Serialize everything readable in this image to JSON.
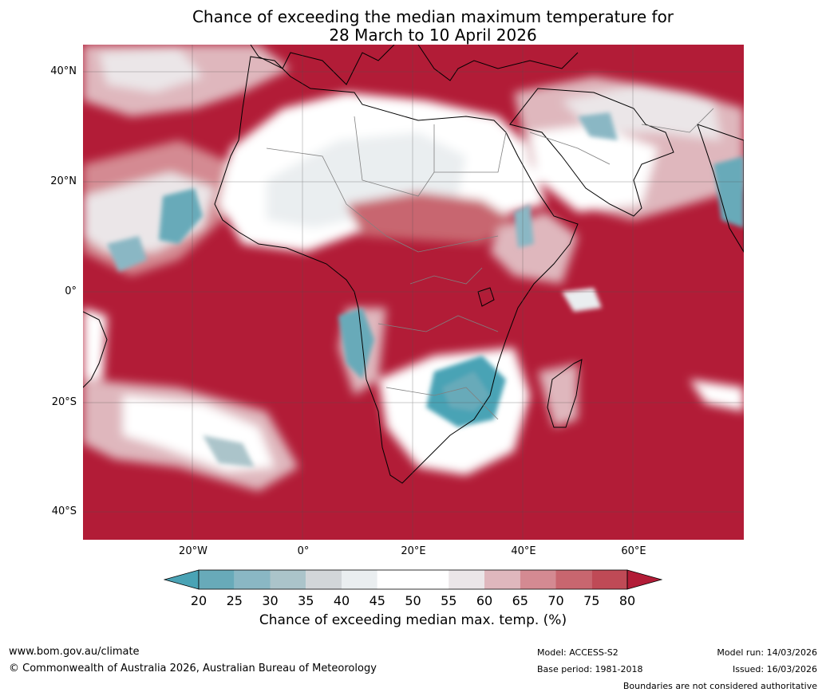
{
  "title": {
    "line1": "Chance of exceeding the median maximum temperature for",
    "line2": "28 March to 10 April 2026"
  },
  "map": {
    "latitude_labels": [
      "40°N",
      "20°N",
      "0°",
      "20°S",
      "40°S"
    ],
    "longitude_labels": [
      "20°W",
      "0°",
      "20°E",
      "40°E",
      "60°E"
    ],
    "colors": {
      "land_outline": "#000000",
      "borders": "#808080",
      "gridlines": "#505050"
    }
  },
  "colorbar": {
    "ticks": [
      "20",
      "25",
      "30",
      "35",
      "40",
      "45",
      "50",
      "55",
      "60",
      "65",
      "70",
      "75",
      "80"
    ],
    "colors": [
      "#4aa3b5",
      "#68aab9",
      "#8ab7c4",
      "#abc4ca",
      "#d2d6d9",
      "#eaeef0",
      "#ffffff",
      "#ffffff",
      "#ebe6e8",
      "#dfb7bd",
      "#d48a92",
      "#c8666f",
      "#bf4a56",
      "#b21c37"
    ],
    "label": "Chance of exceeding median max. temp. (%)"
  },
  "footer": {
    "website": "www.bom.gov.au/climate",
    "copyright": "© Commonwealth of Australia 2026, Australian Bureau of Meteorology",
    "model": "Model: ACCESS-S2",
    "base_period": "Base period: 1981-2018",
    "model_run": "Model run: 14/03/2026",
    "issued": "Issued: 16/03/2026",
    "disclaimer": "Boundaries are not considered authoritative"
  }
}
